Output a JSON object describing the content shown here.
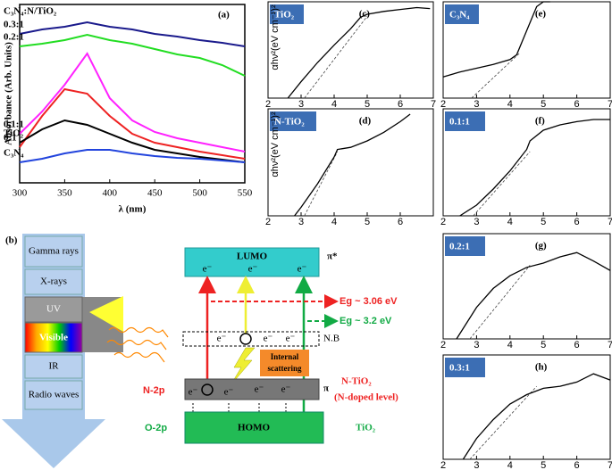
{
  "chart_data": [
    {
      "type": "line",
      "label": "(a)",
      "legend_title": "C₃N₄:N/TiO₂",
      "x_label": "λ (nm)",
      "y_label": "Absorbance (Arb. Units)",
      "x": [
        300,
        325,
        350,
        375,
        400,
        425,
        450,
        475,
        500,
        525,
        550
      ],
      "xlim": [
        300,
        550
      ],
      "xticks": [
        300,
        350,
        400,
        450,
        500,
        550
      ],
      "ylim": [
        0,
        1
      ],
      "series": [
        {
          "name": "0.3:1",
          "color": "#1a1a8c",
          "values": [
            0.835,
            0.86,
            0.875,
            0.9,
            0.875,
            0.86,
            0.835,
            0.82,
            0.8,
            0.785,
            0.765
          ]
        },
        {
          "name": "0.2:1",
          "color": "#22dd22",
          "values": [
            0.765,
            0.78,
            0.8,
            0.83,
            0.8,
            0.78,
            0.75,
            0.72,
            0.7,
            0.66,
            0.6
          ]
        },
        {
          "name": "0.1:1",
          "color": "#ff22ff",
          "values": [
            0.275,
            0.4,
            0.55,
            0.725,
            0.475,
            0.35,
            0.285,
            0.25,
            0.225,
            0.2,
            0.175
          ]
        },
        {
          "name": "0:1",
          "color": "#ee2222",
          "values": [
            0.2,
            0.375,
            0.525,
            0.5,
            0.375,
            0.275,
            0.225,
            0.2,
            0.175,
            0.155,
            0.135
          ]
        },
        {
          "name": "TiO₂",
          "color": "#000000",
          "values": [
            0.225,
            0.3,
            0.35,
            0.325,
            0.275,
            0.225,
            0.185,
            0.165,
            0.145,
            0.13,
            0.115
          ]
        },
        {
          "name": "C₃N₄",
          "color": "#2244dd",
          "values": [
            0.115,
            0.135,
            0.165,
            0.185,
            0.185,
            0.165,
            0.15,
            0.14,
            0.135,
            0.125,
            0.115
          ]
        }
      ]
    },
    {
      "type": "line",
      "label": "(c)",
      "title": "TiO₂",
      "y_label": "αhν²(eV cm⁻¹)²",
      "xlim": [
        2,
        7
      ],
      "xticks": [
        2,
        3,
        4,
        5,
        6,
        7
      ],
      "ylim": [
        0,
        1
      ],
      "x": [
        2.6,
        3,
        3.5,
        4,
        4.5,
        4.8,
        5,
        5.5,
        6,
        6.5,
        6.9
      ],
      "values": [
        0,
        0.17,
        0.37,
        0.55,
        0.72,
        0.84,
        0.87,
        0.9,
        0.92,
        0.94,
        0.93
      ],
      "fit_x": [
        3.1,
        5
      ],
      "fit_values": [
        0,
        0.85
      ]
    },
    {
      "type": "line",
      "label": "(e)",
      "title": "C₃N₄",
      "xlim": [
        2,
        7
      ],
      "xticks": [
        2,
        3,
        4,
        5,
        6,
        7
      ],
      "ylim": [
        0,
        1
      ],
      "x": [
        2,
        2.5,
        3,
        3.5,
        4,
        4.2,
        4.5,
        4.8,
        5,
        5.2
      ],
      "values": [
        0.22,
        0.27,
        0.31,
        0.35,
        0.4,
        0.45,
        0.7,
        0.95,
        1.0,
        1.0
      ],
      "fit_x": [
        2.85,
        4.3
      ],
      "fit_values": [
        0,
        0.47
      ]
    },
    {
      "type": "line",
      "label": "(d)",
      "title": "N-TiO₂",
      "y_label": "αhν²(eV cm⁻¹)²",
      "xlim": [
        2,
        7
      ],
      "xticks": [
        2,
        3,
        4,
        5,
        6
      ],
      "ylim": [
        0,
        1
      ],
      "x": [
        2.8,
        3,
        3.5,
        4,
        4.1,
        4.5,
        5,
        5.5,
        6,
        6.3
      ],
      "values": [
        0,
        0.08,
        0.3,
        0.55,
        0.62,
        0.64,
        0.7,
        0.78,
        0.88,
        0.95
      ],
      "fit_x": [
        3.1,
        4.1
      ],
      "fit_values": [
        0,
        0.6
      ]
    },
    {
      "type": "line",
      "label": "(f)",
      "title": "0.1:1",
      "xlim": [
        2,
        7
      ],
      "xticks": [
        2,
        3,
        4,
        5,
        6,
        7
      ],
      "ylim": [
        0,
        1
      ],
      "x": [
        2.5,
        3,
        3.5,
        4,
        4.5,
        4.6,
        5,
        5.5,
        6,
        6.5,
        7
      ],
      "values": [
        0,
        0.1,
        0.25,
        0.42,
        0.62,
        0.7,
        0.8,
        0.85,
        0.88,
        0.9,
        0.9
      ],
      "fit_x": [
        2.9,
        4.6
      ],
      "fit_values": [
        0,
        0.6
      ]
    },
    {
      "type": "line",
      "label": "(g)",
      "title": "0.2:1",
      "xlim": [
        2,
        7
      ],
      "xticks": [
        2,
        3,
        4,
        5,
        6,
        7
      ],
      "ylim": [
        0,
        1
      ],
      "x": [
        2.4,
        3,
        3.5,
        4,
        4.5,
        5,
        5.5,
        6,
        6.5,
        7
      ],
      "values": [
        0,
        0.3,
        0.48,
        0.6,
        0.68,
        0.72,
        0.78,
        0.82,
        0.74,
        0.65
      ],
      "fit_x": [
        2.8,
        4.6
      ],
      "fit_values": [
        0,
        0.7
      ]
    },
    {
      "type": "line",
      "label": "(h)",
      "title": "0.3:1",
      "xlim": [
        2,
        7
      ],
      "xticks": [
        2,
        3,
        4,
        5,
        6,
        7
      ],
      "ylim": [
        0,
        1
      ],
      "x": [
        2.6,
        3,
        3.5,
        4,
        4.5,
        5,
        5.5,
        6,
        6.5,
        7
      ],
      "values": [
        0,
        0.2,
        0.38,
        0.53,
        0.62,
        0.68,
        0.7,
        0.74,
        0.82,
        0.76
      ],
      "fit_x": [
        2.8,
        4.8
      ],
      "fit_values": [
        0,
        0.7
      ]
    }
  ],
  "diagram": {
    "label": "(b)",
    "spectrum": [
      "Gamma rays",
      "X-rays",
      "UV",
      "Visible",
      "IR",
      "Radio waves"
    ],
    "lumo": "LUMO",
    "pi_star": "π*",
    "lumo_electrons": [
      "e⁻",
      "e⁻",
      "e⁻"
    ],
    "gap_n": "Eg ~ 3.06 eV",
    "gap_tio2": "Eg ~ 3.2 eV",
    "nb_electrons": [
      "e⁻",
      "e⁻",
      "e⁻"
    ],
    "nb": "N.B",
    "scattering": "Internal scattering",
    "n2p": "N-2p",
    "pi": "π",
    "doped_electrons": [
      "e⁻",
      "e⁻",
      "e⁻",
      "e⁻"
    ],
    "n_tio2": "N-TiO₂",
    "n_level": "(N-doped level)",
    "homo": "HOMO",
    "o2p": "O-2p",
    "tio2": "TiO₂"
  }
}
